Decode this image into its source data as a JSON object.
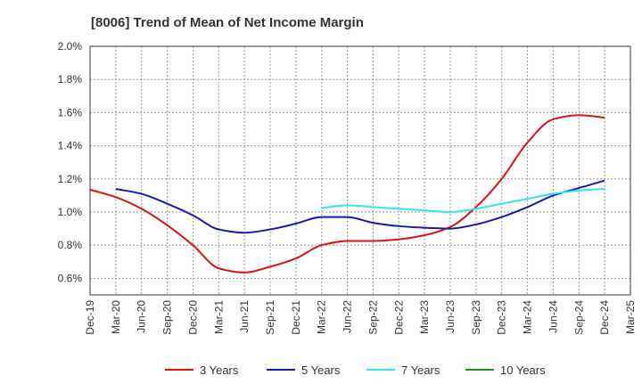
{
  "chart_data": {
    "type": "line",
    "title": "[8006]  Trend of Mean of Net Income Margin",
    "x_labels": [
      "Dec-19",
      "Mar-20",
      "Jun-20",
      "Sep-20",
      "Dec-20",
      "Mar-21",
      "Jun-21",
      "Sep-21",
      "Dec-21",
      "Mar-22",
      "Jun-22",
      "Sep-22",
      "Dec-22",
      "Mar-23",
      "Jun-23",
      "Sep-23",
      "Dec-23",
      "Mar-24",
      "Jun-24",
      "Sep-24",
      "Dec-24",
      "Mar-25"
    ],
    "y_ticks": [
      "0.6%",
      "0.8%",
      "1.0%",
      "1.2%",
      "1.4%",
      "1.6%",
      "1.8%",
      "2.0%"
    ],
    "ylim": [
      0.5,
      2.0
    ],
    "grid": true,
    "legend_position": "bottom",
    "series": [
      {
        "name": "3 Years",
        "color": "#dd1111",
        "values": [
          1.135,
          1.09,
          1.02,
          0.92,
          0.8,
          0.66,
          0.635,
          0.67,
          0.72,
          0.8,
          0.825,
          0.825,
          0.835,
          0.86,
          0.91,
          1.03,
          1.2,
          1.42,
          1.56,
          1.585,
          1.57,
          null
        ]
      },
      {
        "name": "5 Years",
        "color": "#1a1aad",
        "values": [
          null,
          1.14,
          1.11,
          1.05,
          0.98,
          0.895,
          0.875,
          0.895,
          0.93,
          0.97,
          0.97,
          0.935,
          0.915,
          0.905,
          0.9,
          0.925,
          0.97,
          1.03,
          1.1,
          1.145,
          1.19,
          null
        ]
      },
      {
        "name": "7 Years",
        "color": "#33e5ee",
        "values": [
          null,
          null,
          null,
          null,
          null,
          null,
          null,
          null,
          null,
          1.025,
          1.04,
          1.03,
          1.02,
          1.01,
          1.0,
          1.02,
          1.05,
          1.08,
          1.11,
          1.13,
          1.14,
          null
        ]
      },
      {
        "name": "10 Years",
        "color": "#2a8a2a",
        "values": [
          null,
          null,
          null,
          null,
          null,
          null,
          null,
          null,
          null,
          null,
          null,
          null,
          null,
          null,
          null,
          null,
          null,
          null,
          null,
          null,
          null,
          null
        ]
      }
    ]
  }
}
